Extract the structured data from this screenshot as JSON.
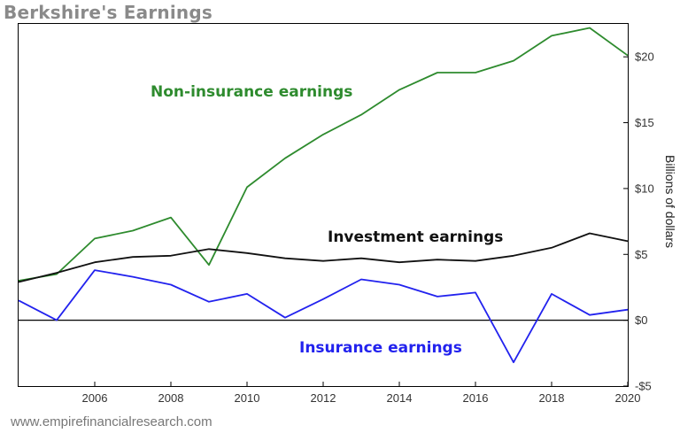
{
  "header": {
    "title": "Berkshire's Earnings"
  },
  "footer": {
    "source": "www.empirefinancialresearch.com"
  },
  "colors": {
    "non_insurance": "#2e8b2e",
    "investment": "#111111",
    "insurance": "#2222ee",
    "zero_line": "#000000",
    "frame": "#000000"
  },
  "chart_data": {
    "type": "line",
    "title": "Berkshire's Earnings",
    "xlabel": "",
    "ylabel": "Billions of dollars",
    "xlim": [
      2004,
      2020
    ],
    "ylim": [
      -5,
      22.5
    ],
    "x_ticks": [
      2006,
      2008,
      2010,
      2012,
      2014,
      2016,
      2018,
      2020
    ],
    "y_ticks": [
      -5,
      0,
      5,
      10,
      15,
      20
    ],
    "y_tick_labels": [
      "-$5",
      "$0",
      "$5",
      "$10",
      "$15",
      "$20"
    ],
    "y_axis_side": "right",
    "grid": false,
    "zero_line": true,
    "x": [
      2004,
      2005,
      2006,
      2007,
      2008,
      2009,
      2010,
      2011,
      2012,
      2013,
      2014,
      2015,
      2016,
      2017,
      2018,
      2019,
      2020
    ],
    "series": [
      {
        "name": "Non-insurance earnings",
        "color": "#2e8b2e",
        "values": [
          3.0,
          3.5,
          6.2,
          6.8,
          7.8,
          4.2,
          10.1,
          12.3,
          14.1,
          15.6,
          17.5,
          18.8,
          18.8,
          19.7,
          21.6,
          22.2,
          20.1
        ]
      },
      {
        "name": "Investment earnings",
        "color": "#111111",
        "values": [
          2.9,
          3.6,
          4.4,
          4.8,
          4.9,
          5.4,
          5.1,
          4.7,
          4.5,
          4.7,
          4.4,
          4.6,
          4.5,
          4.9,
          5.5,
          6.6,
          6.0
        ]
      },
      {
        "name": "Insurance earnings",
        "color": "#2222ee",
        "values": [
          1.5,
          0.0,
          3.8,
          3.3,
          2.7,
          1.4,
          2.0,
          0.2,
          1.6,
          3.1,
          2.7,
          1.8,
          2.1,
          -3.2,
          2.0,
          0.4,
          0.8
        ]
      }
    ]
  }
}
